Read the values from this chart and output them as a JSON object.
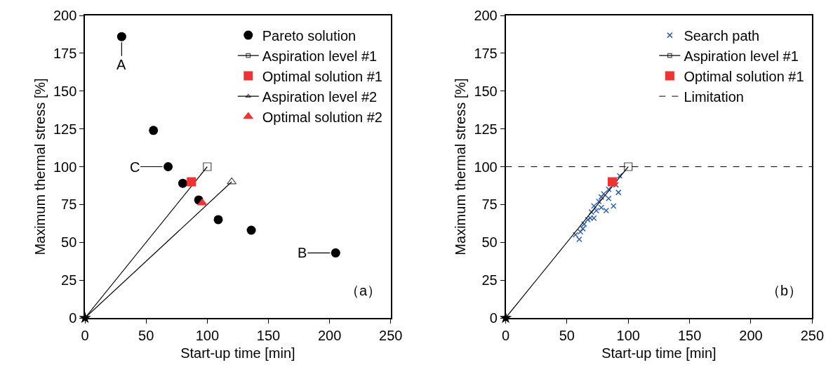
{
  "chart_data": [
    {
      "type": "scatter",
      "xlabel": "Start-up time [min]",
      "ylabel": "Maximum thermal stress [%]",
      "xlim": [
        0,
        250
      ],
      "ylim": [
        0,
        200
      ],
      "xticks": [
        0,
        50,
        100,
        150,
        200,
        250
      ],
      "yticks": [
        0,
        25,
        50,
        75,
        100,
        125,
        150,
        175,
        200
      ],
      "legend": "top right",
      "annotations": [
        {
          "text": "A",
          "x": 30,
          "y": 186
        },
        {
          "text": "C",
          "x": 68,
          "y": 100
        },
        {
          "text": "B",
          "x": 205,
          "y": 43
        },
        "（a）"
      ],
      "series": [
        {
          "marker": "star",
          "color": "#000000",
          "x": [
            0
          ],
          "values": [
            0
          ]
        },
        {
          "name": "Pareto solution",
          "marker": "circle",
          "color": "#000000",
          "x": [
            30,
            56,
            68,
            80,
            93,
            109,
            136,
            205
          ],
          "values": [
            186,
            124,
            100,
            89,
            78,
            65,
            58,
            43
          ]
        },
        {
          "name": "Aspiration level #1",
          "type": "line",
          "marker": "square",
          "color": "#000000",
          "x": [
            0,
            100
          ],
          "values": [
            0,
            100
          ]
        },
        {
          "name": "Optimal solution #1",
          "marker": "square",
          "color": "#ee3333",
          "x": [
            87
          ],
          "values": [
            90
          ]
        },
        {
          "name": "Aspiration level #2",
          "type": "line",
          "marker": "triangle",
          "color": "#000000",
          "x": [
            0,
            120
          ],
          "values": [
            0,
            90
          ]
        },
        {
          "name": "Optimal solution #2",
          "marker": "triangle",
          "color": "#ee3333",
          "x": [
            96
          ],
          "values": [
            76
          ]
        }
      ]
    },
    {
      "type": "scatter",
      "xlabel": "Start-up time [min]",
      "ylabel": "Maximum thermal stress [%]",
      "xlim": [
        0,
        250
      ],
      "ylim": [
        0,
        200
      ],
      "xticks": [
        0,
        50,
        100,
        150,
        200,
        250
      ],
      "yticks": [
        0,
        25,
        50,
        75,
        100,
        125,
        150,
        175,
        200
      ],
      "legend": "top right",
      "annotations": [
        "（b）"
      ],
      "ref_lines": [
        {
          "axis": "y",
          "value": 100,
          "label": "Limitation",
          "line_style": "dashed",
          "color": "#000000"
        }
      ],
      "series": [
        {
          "marker": "star",
          "color": "#000000",
          "x": [
            0
          ],
          "values": [
            0
          ]
        },
        {
          "name": "Search path",
          "marker": "cross",
          "color": "#3060b0",
          "x": [
            57,
            60,
            61,
            63,
            64,
            67,
            69,
            70,
            72,
            72,
            74,
            76,
            78,
            78,
            80,
            82,
            84,
            84,
            88,
            90,
            92,
            93
          ],
          "values": [
            55,
            52,
            57,
            59,
            62,
            65,
            66,
            70,
            66,
            74,
            71,
            77,
            73,
            80,
            82,
            71,
            79,
            85,
            74,
            88,
            83,
            94
          ]
        },
        {
          "name": "Aspiration level #1",
          "type": "line",
          "marker": "square",
          "color": "#000000",
          "x": [
            0,
            100
          ],
          "values": [
            0,
            100
          ]
        },
        {
          "name": "Optimal solution #1",
          "marker": "square",
          "color": "#ee3333",
          "x": [
            87
          ],
          "values": [
            90
          ]
        }
      ]
    }
  ]
}
